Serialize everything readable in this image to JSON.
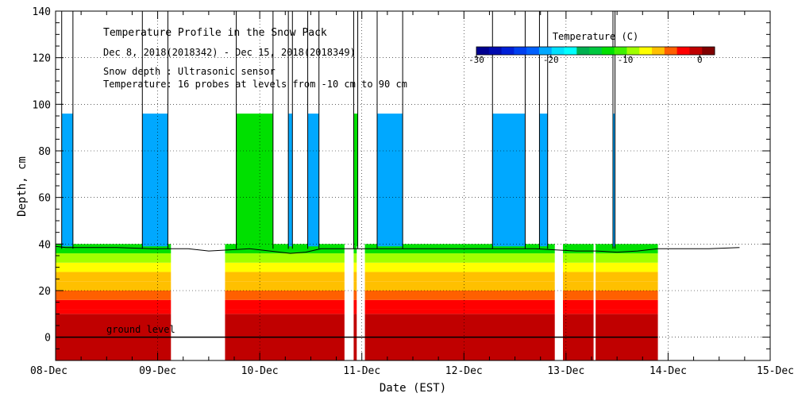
{
  "chart_data": {
    "type": "heatmap",
    "title": "Temperature Profile in the Snow Pack",
    "subtitle_lines": [
      "Dec  8, 2018(2018342) - Dec 15, 2018(2018349)",
      "Snow depth : Ultrasonic sensor",
      "Temperature: 16 probes at levels from -10 cm to 90 cm"
    ],
    "xlabel": "Date (EST)",
    "ylabel": "Depth, cm",
    "x_ticks": [
      "08-Dec",
      "09-Dec",
      "10-Dec",
      "11-Dec",
      "12-Dec",
      "13-Dec",
      "14-Dec",
      "15-Dec"
    ],
    "x_range_days": [
      0,
      7
    ],
    "ylim": [
      -10,
      140
    ],
    "y_ticks": [
      0,
      20,
      40,
      60,
      80,
      100,
      120,
      140
    ],
    "annotation": "ground level",
    "grid": "dotted",
    "colorbar": {
      "title": "Temperature (C)",
      "ticks": [
        -30,
        -20,
        -10,
        0
      ],
      "range": [
        -30,
        2
      ],
      "colors": [
        "#000090",
        "#000bb0",
        "#0020d8",
        "#0040f0",
        "#0060ff",
        "#00a8ff",
        "#00e0ff",
        "#00ffff",
        "#00b050",
        "#00c840",
        "#00e000",
        "#40f000",
        "#a0ff00",
        "#ffff00",
        "#ffc000",
        "#ff6000",
        "#ff0000",
        "#c00000",
        "#800000"
      ]
    },
    "snow_depth": {
      "x": [
        0,
        0.1,
        0.3,
        0.6,
        0.95,
        1.1,
        1.3,
        1.5,
        1.7,
        1.9,
        2.1,
        2.3,
        2.45,
        2.6,
        2.8,
        3.0,
        3.2,
        3.5,
        3.8,
        4.1,
        4.4,
        4.7,
        4.9,
        5.1,
        5.3,
        5.5,
        5.7,
        5.9,
        6.1,
        6.4,
        6.7
      ],
      "y": [
        39,
        38.5,
        38.5,
        38.5,
        38,
        38,
        38,
        37,
        37.5,
        38,
        37,
        36,
        36.5,
        38,
        38,
        38,
        38,
        38,
        38,
        38,
        38,
        38,
        37.5,
        37,
        37,
        36.5,
        37,
        38,
        38,
        38,
        38.5
      ]
    },
    "data_segments_days": [
      [
        0,
        1.13
      ],
      [
        1.66,
        2.83
      ],
      [
        2.92,
        2.95
      ],
      [
        3.03,
        4.89
      ],
      [
        4.97,
        5.27
      ],
      [
        5.29,
        5.9
      ]
    ],
    "temperature_bands_by_depth_cm": [
      {
        "from": -10,
        "to": 10,
        "temp_c": 1
      },
      {
        "from": 10,
        "to": 12,
        "temp_c": -1
      },
      {
        "from": 12,
        "to": 16,
        "temp_c": -2
      },
      {
        "from": 16,
        "to": 20,
        "temp_c": -4
      },
      {
        "from": 20,
        "to": 24,
        "temp_c": -5
      },
      {
        "from": 24,
        "to": 28,
        "temp_c": -6
      },
      {
        "from": 28,
        "to": 32,
        "temp_c": -7
      },
      {
        "from": 32,
        "to": 36,
        "temp_c": -9
      },
      {
        "from": 36,
        "to": 40,
        "temp_c": -12
      }
    ],
    "cold_air_blocks": [
      {
        "x0": 0.06,
        "x1": 0.17,
        "temp_c": -22
      },
      {
        "x0": 0.85,
        "x1": 1.1,
        "temp_c": -22
      },
      {
        "x0": 1.77,
        "x1": 2.13,
        "temp_c": -12
      },
      {
        "x0": 2.28,
        "x1": 2.32,
        "temp_c": -22
      },
      {
        "x0": 2.47,
        "x1": 2.58,
        "temp_c": -22
      },
      {
        "x0": 2.92,
        "x1": 2.96,
        "temp_c": -12
      },
      {
        "x0": 3.15,
        "x1": 3.4,
        "temp_c": -22
      },
      {
        "x0": 4.28,
        "x1": 4.6,
        "temp_c": -22
      },
      {
        "x0": 4.74,
        "x1": 4.82,
        "temp_c": -22
      },
      {
        "x0": 5.46,
        "x1": 5.48,
        "temp_c": -22
      }
    ],
    "snow_surface_plotted_to_cm": 96,
    "ground_level_cm": 0
  }
}
